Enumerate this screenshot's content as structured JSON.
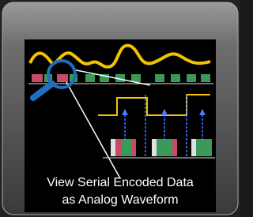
{
  "button": {
    "caption_lines": [
      "View Serial Encoded Data",
      "as Analog Waveform"
    ]
  }
}
